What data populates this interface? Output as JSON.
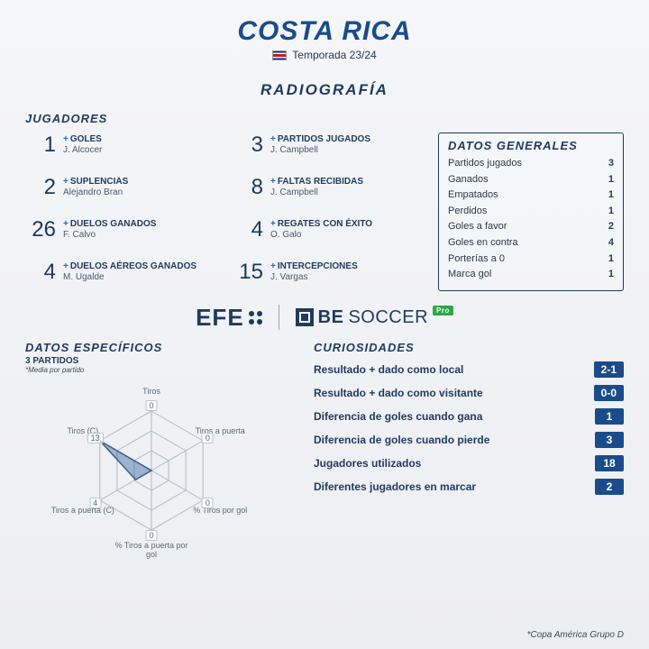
{
  "header": {
    "title": "COSTA RICA",
    "season": "Temporada 23/24",
    "subtitle": "RADIOGRAFÍA"
  },
  "players_section_label": "JUGADORES",
  "player_stats": [
    {
      "value": "1",
      "label": "GOLES",
      "sub": "J. Alcocer"
    },
    {
      "value": "3",
      "label": "PARTIDOS JUGADOS",
      "sub": "J. Campbell"
    },
    {
      "value": "2",
      "label": "SUPLENCIAS",
      "sub": "Alejandro Bran"
    },
    {
      "value": "8",
      "label": "FALTAS RECIBIDAS",
      "sub": "J. Campbell"
    },
    {
      "value": "26",
      "label": "DUELOS GANADOS",
      "sub": "F. Calvo"
    },
    {
      "value": "4",
      "label": "REGATES CON ÉXITO",
      "sub": "O. Galo"
    },
    {
      "value": "4",
      "label": "DUELOS AÉREOS GANADOS",
      "sub": "M. Ugalde"
    },
    {
      "value": "15",
      "label": "INTERCEPCIONES",
      "sub": "J. Vargas"
    }
  ],
  "general": {
    "title": "DATOS GENERALES",
    "rows": [
      {
        "k": "Partidos jugados",
        "v": "3"
      },
      {
        "k": "Ganados",
        "v": "1"
      },
      {
        "k": "Empatados",
        "v": "1"
      },
      {
        "k": "Perdidos",
        "v": "1"
      },
      {
        "k": "Goles a favor",
        "v": "2"
      },
      {
        "k": "Goles en contra",
        "v": "4"
      },
      {
        "k": "Porterías a 0",
        "v": "1"
      },
      {
        "k": "Marca gol",
        "v": "1"
      }
    ]
  },
  "logos": {
    "efe": "EFE",
    "be": "BE",
    "soccer": "SOCCER",
    "pro": "Pro"
  },
  "specific": {
    "title": "DATOS ESPECÍFICOS",
    "note": "3 PARTIDOS",
    "subnote": "*Media por partido"
  },
  "radar": {
    "type": "radar",
    "max": 13,
    "rings": 3,
    "line_color": "#aeb8c4",
    "fill_color": "rgba(60,100,160,0.45)",
    "stroke_color": "#3a5e8a",
    "axes": [
      {
        "label": "Tiros",
        "value": 0
      },
      {
        "label": "Tiros a puerta",
        "value": 0
      },
      {
        "label": "% Tiros por gol",
        "value": 0
      },
      {
        "label": "% Tiros a puerta por gol",
        "value": 0
      },
      {
        "label": "Tiros a puerta (C)",
        "value": 4
      },
      {
        "label": "Tiros (C)",
        "value": 13
      }
    ]
  },
  "curios": {
    "title": "CURIOSIDADES",
    "rows": [
      {
        "k": "Resultado + dado como local",
        "v": "2-1"
      },
      {
        "k": "Resultado + dado como visitante",
        "v": "0-0"
      },
      {
        "k": "Diferencia de goles cuando gana",
        "v": "1"
      },
      {
        "k": "Diferencia de goles cuando pierde",
        "v": "3"
      },
      {
        "k": "Jugadores utilizados",
        "v": "18"
      },
      {
        "k": "Diferentes jugadores en marcar",
        "v": "2"
      }
    ]
  },
  "footnote": "*Copa América Grupo D"
}
